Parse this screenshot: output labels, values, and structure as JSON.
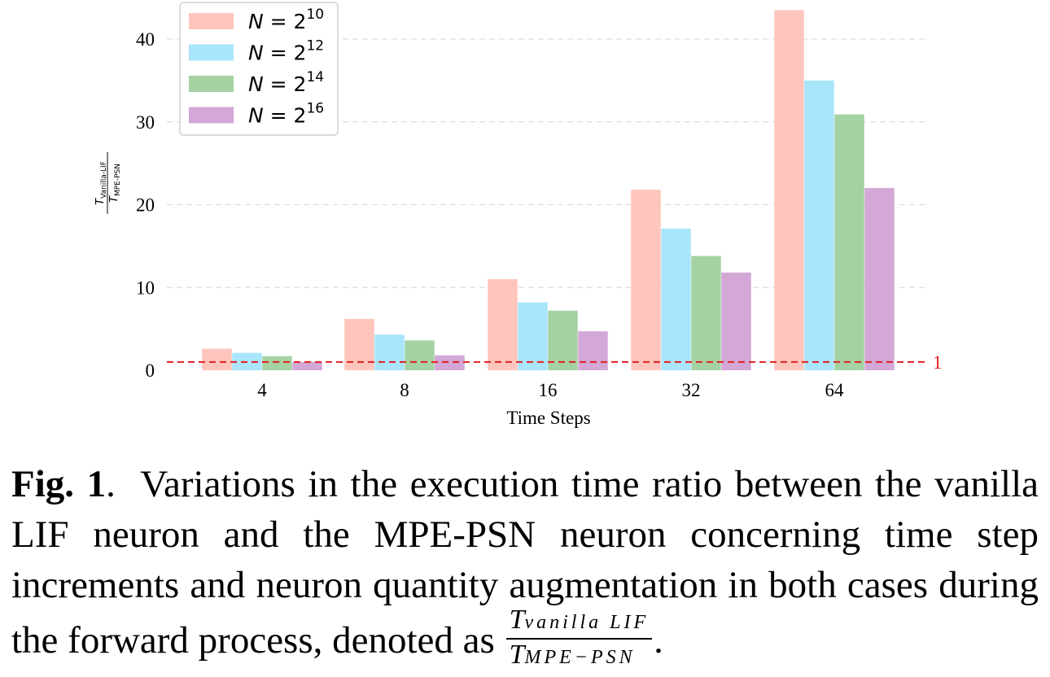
{
  "chart_data": {
    "type": "bar",
    "title": "",
    "xlabel": "Time Steps",
    "ylabel": {
      "symbol": "T",
      "numerator_sub": "Vanilla-LIF",
      "denominator_sub": "MPE-PSN"
    },
    "categories": [
      "4",
      "8",
      "16",
      "32",
      "64"
    ],
    "series": [
      {
        "name": "N = 2^10",
        "base": "N = 2",
        "exp": "10",
        "color": "#FFC5BC",
        "values": [
          2.6,
          6.2,
          11.0,
          21.8,
          43.5
        ]
      },
      {
        "name": "N = 2^12",
        "base": "N = 2",
        "exp": "12",
        "color": "#A9E5FB",
        "values": [
          2.1,
          4.3,
          8.2,
          17.1,
          35.0
        ]
      },
      {
        "name": "N = 2^14",
        "base": "N = 2",
        "exp": "14",
        "color": "#A5D2A3",
        "values": [
          1.7,
          3.6,
          7.2,
          13.8,
          30.9
        ]
      },
      {
        "name": "N = 2^16",
        "base": "N = 2",
        "exp": "16",
        "color": "#D3A7D6",
        "values": [
          1.0,
          1.8,
          4.7,
          11.8,
          22.0
        ]
      }
    ],
    "ylim": [
      0,
      44
    ],
    "yticks": [
      0,
      10,
      20,
      30,
      40
    ],
    "reference_line": {
      "value": 1,
      "label": "1",
      "color": "#E02020",
      "style": "dashed"
    },
    "grid": {
      "y": true,
      "style": "dashed"
    },
    "legend_position": "top-left"
  },
  "caption": {
    "label": "Fig. 1",
    "text": "Variations in the execution time ratio between the vanilla LIF neuron and the MPE-PSN neuron concerning time step increments and neuron quantity augmentation in both cases during the forward process, denoted as",
    "formula_numerator_symbol": "T",
    "formula_numerator_sub": "vanilla LIF",
    "formula_denominator_symbol": "T",
    "formula_denominator_sub": "MPE−PSN",
    "end_punct": "."
  }
}
